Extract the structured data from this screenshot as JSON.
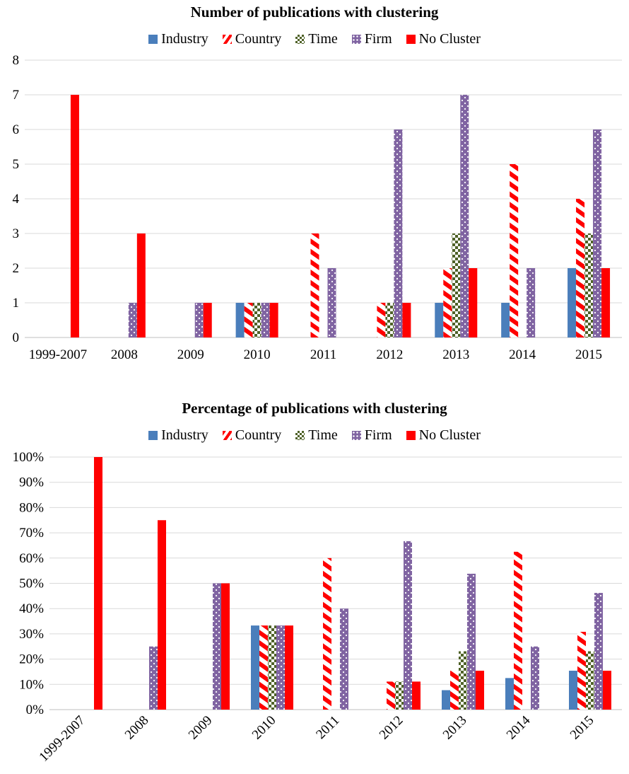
{
  "colors": {
    "industry": "#4a7ebb",
    "country": "#ff0000",
    "time": "#4f6228",
    "firm": "#8064a2",
    "no_cluster": "#ff0000",
    "grid": "#d9d9d9"
  },
  "legend": [
    {
      "key": "industry",
      "label": "Industry"
    },
    {
      "key": "country",
      "label": "Country"
    },
    {
      "key": "time",
      "label": "Time"
    },
    {
      "key": "firm",
      "label": "Firm"
    },
    {
      "key": "no_cluster",
      "label": "No Cluster"
    }
  ],
  "chart_data": [
    {
      "type": "bar",
      "title": "Number of publications with clustering",
      "categories": [
        "1999-2007",
        "2008",
        "2009",
        "2010",
        "2011",
        "2012",
        "2013",
        "2014",
        "2015"
      ],
      "ylim": [
        0,
        8
      ],
      "yticks": [
        "0",
        "1",
        "2",
        "3",
        "4",
        "5",
        "6",
        "7",
        "8"
      ],
      "grid": true,
      "legend_position": "top",
      "series": [
        {
          "name": "Industry",
          "values": [
            0,
            0,
            0,
            1,
            0,
            0,
            1,
            1,
            2
          ]
        },
        {
          "name": "Country",
          "values": [
            0,
            0,
            0,
            1,
            3,
            1,
            2,
            5,
            4
          ]
        },
        {
          "name": "Time",
          "values": [
            0,
            0,
            0,
            1,
            0,
            1,
            3,
            0,
            3
          ]
        },
        {
          "name": "Firm",
          "values": [
            0,
            1,
            1,
            1,
            2,
            6,
            7,
            2,
            6
          ]
        },
        {
          "name": "No Cluster",
          "values": [
            7,
            3,
            1,
            1,
            0,
            1,
            2,
            0,
            2
          ]
        }
      ]
    },
    {
      "type": "bar",
      "title": "Percentage of publications with clustering",
      "categories": [
        "1999-2007",
        "2008",
        "2009",
        "2010",
        "2011",
        "2012",
        "2013",
        "2014",
        "2015"
      ],
      "ylim": [
        0,
        100
      ],
      "yticks": [
        "0%",
        "10%",
        "20%",
        "30%",
        "40%",
        "50%",
        "60%",
        "70%",
        "80%",
        "90%",
        "100%"
      ],
      "grid": true,
      "legend_position": "top",
      "series": [
        {
          "name": "Industry",
          "values": [
            0,
            0,
            0,
            33.3,
            0,
            0,
            7.7,
            12.5,
            15.4
          ]
        },
        {
          "name": "Country",
          "values": [
            0,
            0,
            0,
            33.3,
            60,
            11.1,
            15.4,
            62.5,
            30.8
          ]
        },
        {
          "name": "Time",
          "values": [
            0,
            0,
            0,
            33.3,
            0,
            11.1,
            23.1,
            0,
            23.1
          ]
        },
        {
          "name": "Firm",
          "values": [
            0,
            25,
            50,
            33.3,
            40,
            66.7,
            53.8,
            25,
            46.2
          ]
        },
        {
          "name": "No Cluster",
          "values": [
            100,
            75,
            50,
            33.3,
            0,
            11.1,
            15.4,
            0,
            15.4
          ]
        }
      ]
    }
  ]
}
